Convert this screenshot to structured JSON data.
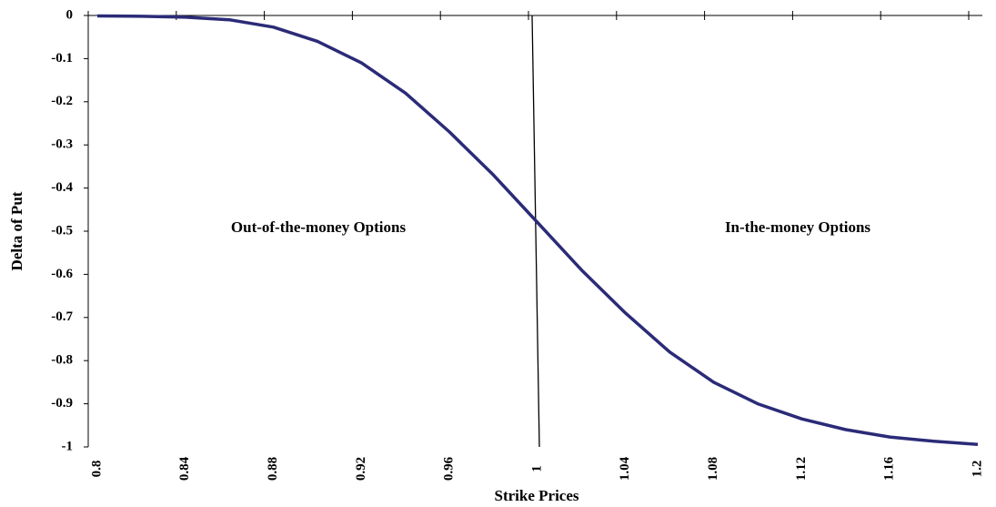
{
  "chart_data": {
    "type": "line",
    "x_label": "Strike Prices",
    "y_label": "Delta of Put",
    "annotations": [
      "Out-of-the-money Options",
      "In-the-money Options"
    ],
    "x": [
      0.8,
      0.82,
      0.84,
      0.86,
      0.88,
      0.9,
      0.92,
      0.94,
      0.96,
      0.98,
      1.0,
      1.02,
      1.04,
      1.06,
      1.08,
      1.1,
      1.12,
      1.14,
      1.16,
      1.18,
      1.2
    ],
    "series": [
      {
        "color": "#2b2b78",
        "values": [
          -0.001,
          -0.002,
          -0.004,
          -0.01,
          -0.027,
          -0.06,
          -0.11,
          -0.18,
          -0.27,
          -0.37,
          -0.48,
          -0.59,
          -0.69,
          -0.78,
          -0.85,
          -0.9,
          -0.935,
          -0.96,
          -0.977,
          -0.987,
          -0.994
        ]
      }
    ],
    "xlim": [
      0.8,
      1.2
    ],
    "xticks": [
      0.8,
      0.84,
      0.88,
      0.92,
      0.96,
      1,
      1.04,
      1.08,
      1.12,
      1.16,
      1.2
    ],
    "ylim": [
      -1,
      0
    ],
    "yticks": [
      0,
      -0.1,
      -0.2,
      -0.3,
      -0.4,
      -0.5,
      -0.6,
      -0.7,
      -0.8,
      -0.9,
      -1
    ]
  }
}
